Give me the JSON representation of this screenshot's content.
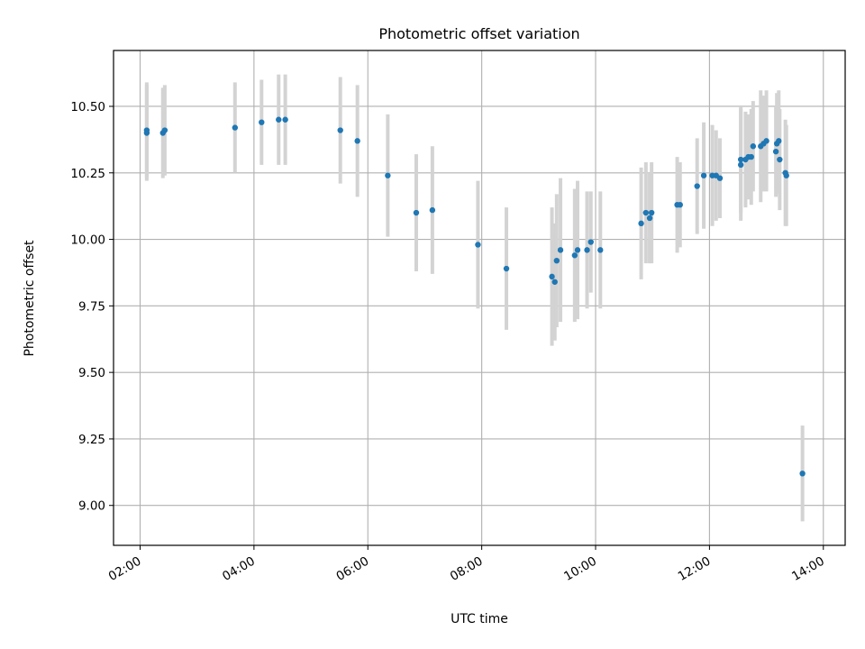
{
  "chart_data": {
    "type": "scatter",
    "title": "Photometric offset variation",
    "xlabel": "UTC time",
    "ylabel": "Photometric offset",
    "xlim": [
      "01:32",
      "14:23"
    ],
    "ylim": [
      8.85,
      10.71
    ],
    "x_ticks": [
      "02:00",
      "04:00",
      "06:00",
      "08:00",
      "10:00",
      "12:00",
      "14:00"
    ],
    "y_ticks": [
      "9.00",
      "9.25",
      "9.50",
      "9.75",
      "10.00",
      "10.25",
      "10.50"
    ],
    "grid": true,
    "colors": {
      "point": "#1f77b4",
      "errorbar": "#d3d3d3",
      "grid": "#b0b0b0"
    },
    "series": [
      {
        "x": [
          "02:07",
          "02:07",
          "02:24",
          "02:26",
          "03:40",
          "04:08",
          "04:26",
          "04:33",
          "05:31",
          "05:49",
          "06:21",
          "06:51",
          "07:08",
          "07:56",
          "08:26",
          "09:14",
          "09:17",
          "09:19",
          "09:23",
          "09:38",
          "09:41",
          "09:51",
          "09:55",
          "10:05",
          "10:48",
          "10:53",
          "10:57",
          "10:59",
          "11:26",
          "11:29",
          "11:47",
          "11:54",
          "12:03",
          "12:07",
          "12:11",
          "12:33",
          "12:33",
          "12:38",
          "12:41",
          "12:44",
          "12:46",
          "12:54",
          "12:57",
          "13:00",
          "13:10",
          "13:11",
          "13:13",
          "13:14",
          "13:20",
          "13:21",
          "13:38"
        ],
        "y": [
          10.4,
          10.41,
          10.4,
          10.41,
          10.42,
          10.44,
          10.45,
          10.45,
          10.41,
          10.37,
          10.24,
          10.1,
          10.11,
          9.98,
          9.89,
          9.86,
          9.84,
          9.92,
          9.96,
          9.94,
          9.96,
          9.96,
          9.99,
          9.96,
          10.06,
          10.1,
          10.08,
          10.1,
          10.13,
          10.13,
          10.2,
          10.24,
          10.24,
          10.24,
          10.23,
          10.28,
          10.3,
          10.3,
          10.31,
          10.31,
          10.35,
          10.35,
          10.36,
          10.37,
          10.33,
          10.36,
          10.37,
          10.3,
          10.25,
          10.24,
          9.12
        ],
        "yerr": [
          0.18,
          0.18,
          0.17,
          0.17,
          0.17,
          0.16,
          0.17,
          0.17,
          0.2,
          0.21,
          0.23,
          0.22,
          0.24,
          0.24,
          0.23,
          0.26,
          0.22,
          0.25,
          0.27,
          0.25,
          0.26,
          0.22,
          0.19,
          0.22,
          0.21,
          0.19,
          0.17,
          0.19,
          0.18,
          0.16,
          0.18,
          0.2,
          0.19,
          0.17,
          0.15,
          0.21,
          0.2,
          0.18,
          0.16,
          0.18,
          0.17,
          0.21,
          0.18,
          0.19,
          0.17,
          0.19,
          0.19,
          0.19,
          0.2,
          0.19,
          0.18
        ]
      }
    ]
  }
}
